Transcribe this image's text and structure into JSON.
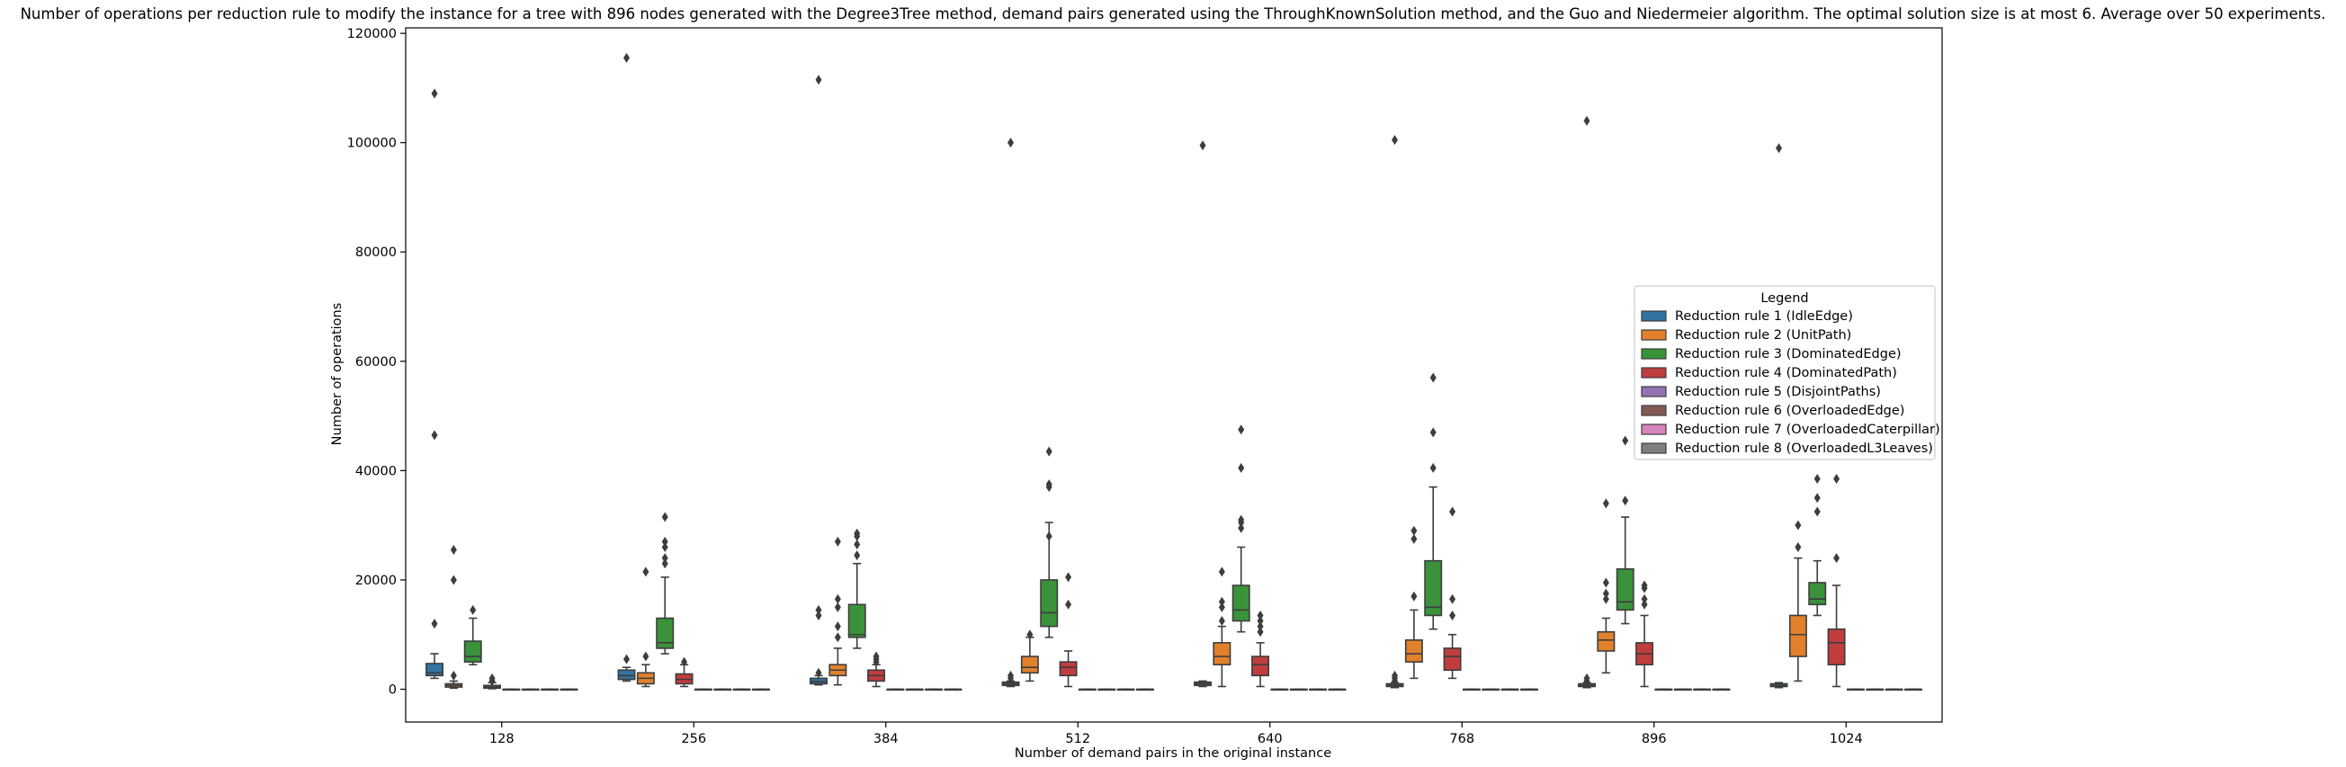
{
  "chart_data": {
    "type": "box",
    "title": "Number of operations per reduction rule to modify the instance for a tree with 896 nodes generated with the Degree3Tree method, demand pairs generated using the ThroughKnownSolution method, and the Guo and Niedermeier algorithm. The optimal solution size is at most 6. Average over 50 experiments.",
    "xlabel": "Number of demand pairs in the original instance",
    "ylabel": "Number of operations",
    "ylim": [
      -6000,
      121000
    ],
    "yticks": [
      0,
      20000,
      40000,
      60000,
      80000,
      100000,
      120000
    ],
    "ytick_labels": [
      "0",
      "20000",
      "40000",
      "60000",
      "80000",
      "100000",
      "120000"
    ],
    "grid": false,
    "categories": [
      "128",
      "256",
      "384",
      "512",
      "640",
      "768",
      "896",
      "1024"
    ],
    "legend": {
      "title": "Legend",
      "placement": "center-right",
      "entries": [
        {
          "label": "Reduction rule 1 (IdleEdge)",
          "color": "#3274a1"
        },
        {
          "label": "Reduction rule 2 (UnitPath)",
          "color": "#e1812c"
        },
        {
          "label": "Reduction rule 3 (DominatedEdge)",
          "color": "#3a923a"
        },
        {
          "label": "Reduction rule 4 (DominatedPath)",
          "color": "#c03d3e"
        },
        {
          "label": "Reduction rule 5 (DisjointPaths)",
          "color": "#9372b2"
        },
        {
          "label": "Reduction rule 6 (OverloadedEdge)",
          "color": "#845b53"
        },
        {
          "label": "Reduction rule 7 (OverloadedCaterpillar)",
          "color": "#d684bd"
        },
        {
          "label": "Reduction rule 8 (OverloadedL3Leaves)",
          "color": "#7f7f7f"
        }
      ]
    },
    "boxes": [
      [
        {
          "w": [
            2000,
            6500
          ],
          "q": [
            2500,
            4700
          ],
          "m": 3000,
          "f": [
            12000,
            46500,
            109000
          ]
        },
        {
          "w": [
            200,
            1500
          ],
          "q": [
            400,
            1000
          ],
          "m": 700,
          "f": [
            2500,
            20000,
            25500
          ]
        },
        {
          "w": [
            4500,
            13000
          ],
          "q": [
            5000,
            8800
          ],
          "m": 6000,
          "f": [
            14500
          ]
        },
        {
          "w": [
            100,
            1200
          ],
          "q": [
            200,
            700
          ],
          "m": 400,
          "f": [
            1500,
            2000
          ]
        },
        {
          "w": [
            0,
            0
          ],
          "q": [
            0,
            0
          ],
          "m": 0,
          "f": []
        },
        {
          "w": [
            0,
            0
          ],
          "q": [
            0,
            0
          ],
          "m": 0,
          "f": []
        },
        {
          "w": [
            0,
            0
          ],
          "q": [
            0,
            0
          ],
          "m": 0,
          "f": []
        },
        {
          "w": [
            0,
            0
          ],
          "q": [
            0,
            0
          ],
          "m": 0,
          "f": []
        }
      ],
      [
        {
          "w": [
            1500,
            4000
          ],
          "q": [
            1800,
            3500
          ],
          "m": 2500,
          "f": [
            5500,
            115500
          ]
        },
        {
          "w": [
            500,
            4500
          ],
          "q": [
            1000,
            3000
          ],
          "m": 2000,
          "f": [
            6000,
            21500
          ]
        },
        {
          "w": [
            6500,
            20500
          ],
          "q": [
            7500,
            13000
          ],
          "m": 8500,
          "f": [
            23000,
            24000,
            26000,
            27000,
            31500
          ]
        },
        {
          "w": [
            500,
            4500
          ],
          "q": [
            1000,
            2800
          ],
          "m": 1800,
          "f": [
            5000
          ]
        },
        {
          "w": [
            0,
            0
          ],
          "q": [
            0,
            0
          ],
          "m": 0,
          "f": []
        },
        {
          "w": [
            0,
            0
          ],
          "q": [
            0,
            0
          ],
          "m": 0,
          "f": []
        },
        {
          "w": [
            0,
            0
          ],
          "q": [
            0,
            0
          ],
          "m": 0,
          "f": []
        },
        {
          "w": [
            0,
            0
          ],
          "q": [
            0,
            0
          ],
          "m": 0,
          "f": []
        }
      ],
      [
        {
          "w": [
            800,
            2500
          ],
          "q": [
            1000,
            2000
          ],
          "m": 1400,
          "f": [
            3000,
            13500,
            14500,
            111500
          ]
        },
        {
          "w": [
            800,
            7500
          ],
          "q": [
            2500,
            4500
          ],
          "m": 3500,
          "f": [
            9500,
            11500,
            15000,
            16500,
            27000
          ]
        },
        {
          "w": [
            7500,
            23000
          ],
          "q": [
            9500,
            15500
          ],
          "m": 10000,
          "f": [
            24500,
            26500,
            28000,
            28500
          ]
        },
        {
          "w": [
            500,
            4500
          ],
          "q": [
            1500,
            3500
          ],
          "m": 2500,
          "f": [
            5000,
            5500,
            6000
          ]
        },
        {
          "w": [
            0,
            0
          ],
          "q": [
            0,
            0
          ],
          "m": 0,
          "f": []
        },
        {
          "w": [
            0,
            0
          ],
          "q": [
            0,
            0
          ],
          "m": 0,
          "f": []
        },
        {
          "w": [
            0,
            0
          ],
          "q": [
            0,
            0
          ],
          "m": 0,
          "f": []
        },
        {
          "w": [
            0,
            0
          ],
          "q": [
            0,
            0
          ],
          "m": 0,
          "f": []
        }
      ],
      [
        {
          "w": [
            500,
            1500
          ],
          "q": [
            700,
            1300
          ],
          "m": 1000,
          "f": [
            2000,
            2500,
            100000
          ]
        },
        {
          "w": [
            1500,
            9500
          ],
          "q": [
            3000,
            6000
          ],
          "m": 4000,
          "f": [
            10000
          ]
        },
        {
          "w": [
            9500,
            30500
          ],
          "q": [
            11500,
            20000
          ],
          "m": 14000,
          "f": [
            28000,
            37000,
            37500,
            43500
          ]
        },
        {
          "w": [
            500,
            7000
          ],
          "q": [
            2500,
            5000
          ],
          "m": 4000,
          "f": [
            15500,
            20500
          ]
        },
        {
          "w": [
            0,
            0
          ],
          "q": [
            0,
            0
          ],
          "m": 0,
          "f": []
        },
        {
          "w": [
            0,
            0
          ],
          "q": [
            0,
            0
          ],
          "m": 0,
          "f": []
        },
        {
          "w": [
            0,
            0
          ],
          "q": [
            0,
            0
          ],
          "m": 0,
          "f": []
        },
        {
          "w": [
            0,
            0
          ],
          "q": [
            0,
            0
          ],
          "m": 0,
          "f": []
        }
      ],
      [
        {
          "w": [
            500,
            1500
          ],
          "q": [
            700,
            1300
          ],
          "m": 1000,
          "f": [
            99500
          ]
        },
        {
          "w": [
            500,
            11500
          ],
          "q": [
            4500,
            8500
          ],
          "m": 6000,
          "f": [
            12500,
            15000,
            16000,
            21500
          ]
        },
        {
          "w": [
            10500,
            26000
          ],
          "q": [
            12500,
            19000
          ],
          "m": 14500,
          "f": [
            29500,
            30500,
            31000,
            40500,
            47500
          ]
        },
        {
          "w": [
            500,
            8500
          ],
          "q": [
            2500,
            6000
          ],
          "m": 4500,
          "f": [
            10500,
            11500,
            12500,
            13500
          ]
        },
        {
          "w": [
            0,
            0
          ],
          "q": [
            0,
            0
          ],
          "m": 0,
          "f": []
        },
        {
          "w": [
            0,
            0
          ],
          "q": [
            0,
            0
          ],
          "m": 0,
          "f": []
        },
        {
          "w": [
            0,
            0
          ],
          "q": [
            0,
            0
          ],
          "m": 0,
          "f": []
        },
        {
          "w": [
            0,
            0
          ],
          "q": [
            0,
            0
          ],
          "m": 0,
          "f": []
        }
      ],
      [
        {
          "w": [
            300,
            1200
          ],
          "q": [
            500,
            1000
          ],
          "m": 700,
          "f": [
            1500,
            2000,
            2500,
            100500
          ]
        },
        {
          "w": [
            2000,
            14500
          ],
          "q": [
            5000,
            9000
          ],
          "m": 6500,
          "f": [
            17000,
            27500,
            29000
          ]
        },
        {
          "w": [
            11000,
            37000
          ],
          "q": [
            13500,
            23500
          ],
          "m": 15000,
          "f": [
            40500,
            47000,
            57000
          ]
        },
        {
          "w": [
            2000,
            10000
          ],
          "q": [
            3500,
            7500
          ],
          "m": 6000,
          "f": [
            13500,
            16500,
            32500
          ]
        },
        {
          "w": [
            0,
            0
          ],
          "q": [
            0,
            0
          ],
          "m": 0,
          "f": []
        },
        {
          "w": [
            0,
            0
          ],
          "q": [
            0,
            0
          ],
          "m": 0,
          "f": []
        },
        {
          "w": [
            0,
            0
          ],
          "q": [
            0,
            0
          ],
          "m": 0,
          "f": []
        },
        {
          "w": [
            0,
            0
          ],
          "q": [
            0,
            0
          ],
          "m": 0,
          "f": []
        }
      ],
      [
        {
          "w": [
            300,
            1200
          ],
          "q": [
            500,
            1000
          ],
          "m": 700,
          "f": [
            1500,
            2000,
            104000
          ]
        },
        {
          "w": [
            3000,
            13000
          ],
          "q": [
            7000,
            10500
          ],
          "m": 9000,
          "f": [
            16500,
            17500,
            19500,
            34000
          ]
        },
        {
          "w": [
            12000,
            31500
          ],
          "q": [
            14500,
            22000
          ],
          "m": 16000,
          "f": [
            34500,
            45500
          ]
        },
        {
          "w": [
            500,
            13500
          ],
          "q": [
            4500,
            8500
          ],
          "m": 6500,
          "f": [
            15500,
            16500,
            18500,
            19000
          ]
        },
        {
          "w": [
            0,
            0
          ],
          "q": [
            0,
            0
          ],
          "m": 0,
          "f": []
        },
        {
          "w": [
            0,
            0
          ],
          "q": [
            0,
            0
          ],
          "m": 0,
          "f": []
        },
        {
          "w": [
            0,
            0
          ],
          "q": [
            0,
            0
          ],
          "m": 0,
          "f": []
        },
        {
          "w": [
            0,
            0
          ],
          "q": [
            0,
            0
          ],
          "m": 0,
          "f": []
        }
      ],
      [
        {
          "w": [
            300,
            1200
          ],
          "q": [
            500,
            1000
          ],
          "m": 700,
          "f": [
            99000
          ]
        },
        {
          "w": [
            1500,
            24000
          ],
          "q": [
            6000,
            13500
          ],
          "m": 10000,
          "f": [
            26000,
            30000
          ]
        },
        {
          "w": [
            13500,
            23500
          ],
          "q": [
            15500,
            19500
          ],
          "m": 16500,
          "f": [
            32500,
            35000,
            38500
          ]
        },
        {
          "w": [
            500,
            19000
          ],
          "q": [
            4500,
            11000
          ],
          "m": 8500,
          "f": [
            24000,
            38500
          ]
        },
        {
          "w": [
            0,
            0
          ],
          "q": [
            0,
            0
          ],
          "m": 0,
          "f": []
        },
        {
          "w": [
            0,
            0
          ],
          "q": [
            0,
            0
          ],
          "m": 0,
          "f": []
        },
        {
          "w": [
            0,
            0
          ],
          "q": [
            0,
            0
          ],
          "m": 0,
          "f": []
        },
        {
          "w": [
            0,
            0
          ],
          "q": [
            0,
            0
          ],
          "m": 0,
          "f": []
        }
      ]
    ]
  }
}
